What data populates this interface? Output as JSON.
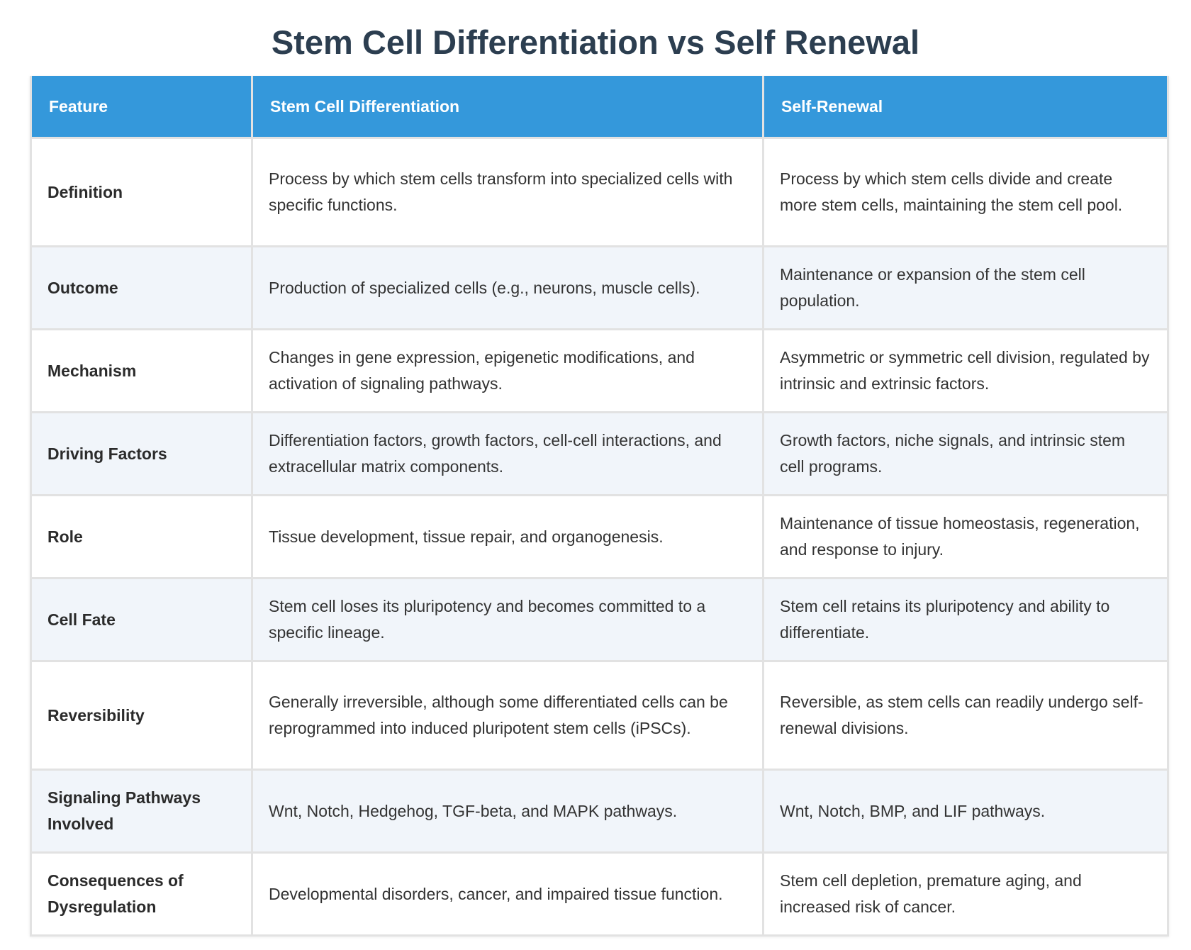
{
  "title": "Stem Cell Differentiation vs Self Renewal",
  "table": {
    "headers": [
      "Feature",
      "Stem Cell Differentiation",
      "Self-Renewal"
    ],
    "rows": [
      {
        "feature": "Definition",
        "differentiation": "Process by which stem cells transform into specialized cells with specific functions.",
        "self_renewal": "Process by which stem cells divide and create more stem cells, maintaining the stem cell pool."
      },
      {
        "feature": "Outcome",
        "differentiation": "Production of specialized cells (e.g., neurons, muscle cells).",
        "self_renewal": "Maintenance or expansion of the stem cell population."
      },
      {
        "feature": "Mechanism",
        "differentiation": "Changes in gene expression, epigenetic modifications, and activation of signaling pathways.",
        "self_renewal": "Asymmetric or symmetric cell division, regulated by intrinsic and extrinsic factors."
      },
      {
        "feature": "Driving Factors",
        "differentiation": "Differentiation factors, growth factors, cell-cell interactions, and extracellular matrix components.",
        "self_renewal": "Growth factors, niche signals, and intrinsic stem cell programs."
      },
      {
        "feature": "Role",
        "differentiation": "Tissue development, tissue repair, and organogenesis.",
        "self_renewal": "Maintenance of tissue homeostasis, regeneration, and response to injury."
      },
      {
        "feature": "Cell Fate",
        "differentiation": "Stem cell loses its pluripotency and becomes committed to a specific lineage.",
        "self_renewal": "Stem cell retains its pluripotency and ability to differentiate."
      },
      {
        "feature": "Reversibility",
        "differentiation": "Generally irreversible, although some differentiated cells can be reprogrammed into induced pluripotent stem cells (iPSCs).",
        "self_renewal": "Reversible, as stem cells can readily undergo self-renewal divisions."
      },
      {
        "feature": "Signaling Pathways Involved",
        "differentiation": "Wnt, Notch, Hedgehog, TGF-beta, and MAPK pathways.",
        "self_renewal": "Wnt, Notch, BMP, and LIF pathways."
      },
      {
        "feature": "Consequences of Dysregulation",
        "differentiation": "Developmental disorders, cancer, and impaired tissue function.",
        "self_renewal": "Stem cell depletion, premature aging, and increased risk of cancer."
      }
    ]
  },
  "colors": {
    "header_bg": "#3498db",
    "title_text": "#2c3e50",
    "stripe_bg": "#f1f5fa",
    "border": "#e2e2e2"
  }
}
